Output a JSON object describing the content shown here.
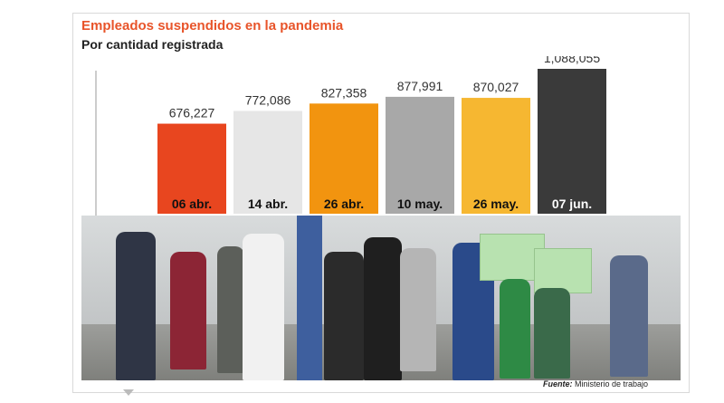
{
  "title": "Empleados suspendidos en la pandemia",
  "subtitle": "Por cantidad registrada",
  "source_label": "Fuente:",
  "source_value": "Ministerio de trabajo",
  "colors": {
    "title": "#e8542a",
    "bars": [
      "#e8461f",
      "#e6e6e6",
      "#f2940f",
      "#a8a8a8",
      "#f6b731",
      "#3a3a3a"
    ],
    "category_text": [
      "#111111",
      "#111111",
      "#111111",
      "#111111",
      "#111111",
      "#ffffff"
    ]
  },
  "chart_data": {
    "type": "bar",
    "categories": [
      "06 abr.",
      "14 abr.",
      "26 abr.",
      "10 may.",
      "26 may.",
      "07 jun."
    ],
    "values": [
      676227,
      772086,
      827358,
      877991,
      870027,
      1088055
    ],
    "value_labels": [
      "676,227",
      "772,086",
      "827,358",
      "877,991",
      "870,027",
      "1,088,055"
    ],
    "title": "Empleados suspendidos en la pandemia",
    "subtitle": "Por cantidad registrada",
    "xlabel": "",
    "ylabel": "",
    "grid": false,
    "legend": "none"
  }
}
